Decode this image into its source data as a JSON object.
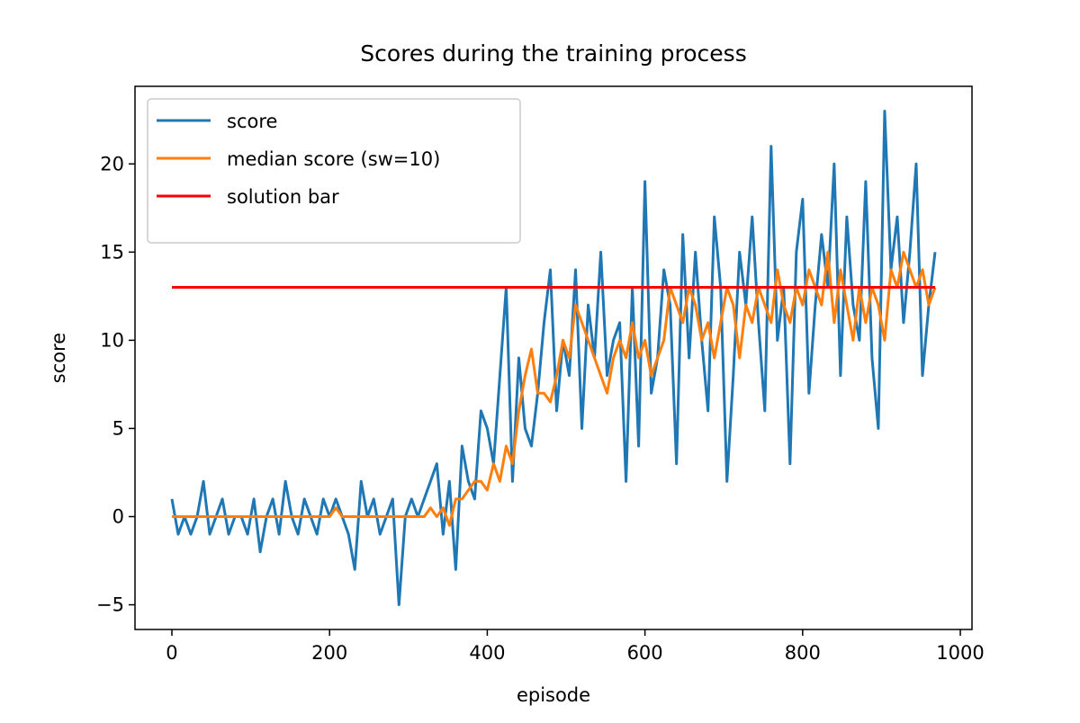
{
  "chart_data": {
    "type": "line",
    "title": "Scores during the training process",
    "x_label": "episode",
    "y_label": "score",
    "xlim": [
      -46.8,
      1014.8
    ],
    "ylim": [
      -6.4,
      24.4
    ],
    "xticks": [
      0,
      200,
      400,
      600,
      800,
      1000
    ],
    "yticks": [
      {
        "value": -5,
        "label": "−5"
      },
      0,
      5,
      10,
      15,
      20
    ],
    "legend": "upper left",
    "series": [
      {
        "name": "score",
        "color": "#1f77b4",
        "x": [
          0,
          8,
          16,
          24,
          32,
          40,
          48,
          56,
          64,
          72,
          80,
          88,
          96,
          104,
          112,
          120,
          128,
          136,
          144,
          152,
          160,
          168,
          176,
          184,
          192,
          200,
          208,
          216,
          224,
          232,
          240,
          248,
          256,
          264,
          272,
          280,
          288,
          296,
          304,
          312,
          320,
          328,
          336,
          344,
          352,
          360,
          368,
          376,
          384,
          392,
          400,
          408,
          416,
          424,
          432,
          440,
          448,
          456,
          464,
          472,
          480,
          488,
          496,
          504,
          512,
          520,
          528,
          536,
          544,
          552,
          560,
          568,
          576,
          584,
          592,
          600,
          608,
          616,
          624,
          632,
          640,
          648,
          656,
          664,
          672,
          680,
          688,
          696,
          704,
          712,
          720,
          728,
          736,
          744,
          752,
          760,
          768,
          776,
          784,
          792,
          800,
          808,
          816,
          824,
          832,
          840,
          848,
          856,
          864,
          872,
          880,
          888,
          896,
          904,
          912,
          920,
          928,
          936,
          944,
          952,
          960,
          968
        ],
        "values": [
          1,
          -1,
          0,
          -1,
          0,
          2,
          -1,
          0,
          1,
          -1,
          0,
          0,
          -1,
          1,
          -2,
          0,
          1,
          -1,
          2,
          0,
          -1,
          1,
          0,
          -1,
          1,
          0,
          1,
          0,
          -1,
          -3,
          2,
          0,
          1,
          -1,
          0,
          1,
          -5,
          0,
          1,
          0,
          1,
          2,
          3,
          -1,
          2,
          -3,
          4,
          2,
          1,
          6,
          5,
          3,
          8,
          13,
          2,
          9,
          5,
          4,
          7,
          11,
          14,
          6,
          10,
          8,
          14,
          5,
          12,
          9,
          15,
          8,
          10,
          11,
          2,
          13,
          4,
          19,
          7,
          9,
          14,
          12,
          3,
          16,
          9,
          15,
          10,
          6,
          17,
          13,
          2,
          8,
          15,
          12,
          17,
          11,
          6,
          21,
          10,
          13,
          3,
          15,
          18,
          7,
          12,
          16,
          13,
          20,
          8,
          17,
          12,
          10,
          19,
          9,
          5,
          23,
          14,
          17,
          11,
          15,
          20,
          8,
          12,
          15
        ]
      },
      {
        "name": "median score (sw=10)",
        "color": "#ff7f0e",
        "x": [
          0,
          8,
          16,
          24,
          32,
          40,
          48,
          56,
          64,
          72,
          80,
          88,
          96,
          104,
          112,
          120,
          128,
          136,
          144,
          152,
          160,
          168,
          176,
          184,
          192,
          200,
          208,
          216,
          224,
          232,
          240,
          248,
          256,
          264,
          272,
          280,
          288,
          296,
          304,
          312,
          320,
          328,
          336,
          344,
          352,
          360,
          368,
          376,
          384,
          392,
          400,
          408,
          416,
          424,
          432,
          440,
          448,
          456,
          464,
          472,
          480,
          488,
          496,
          504,
          512,
          520,
          528,
          536,
          544,
          552,
          560,
          568,
          576,
          584,
          592,
          600,
          608,
          616,
          624,
          632,
          640,
          648,
          656,
          664,
          672,
          680,
          688,
          696,
          704,
          712,
          720,
          728,
          736,
          744,
          752,
          760,
          768,
          776,
          784,
          792,
          800,
          808,
          816,
          824,
          832,
          840,
          848,
          856,
          864,
          872,
          880,
          888,
          896,
          904,
          912,
          920,
          928,
          936,
          944,
          952,
          960,
          968
        ],
        "values": [
          0,
          0,
          0,
          0,
          0,
          0,
          0,
          0,
          0,
          0,
          0,
          0,
          0,
          0,
          0,
          0,
          0,
          0,
          0,
          0,
          0,
          0,
          0,
          0,
          0,
          0,
          0.5,
          0,
          0,
          0,
          0,
          0,
          0,
          0,
          0,
          0,
          0,
          0,
          0,
          0,
          0,
          0.5,
          0,
          0.5,
          -0.5,
          1,
          1,
          1.5,
          2,
          2,
          1.5,
          3,
          2,
          4,
          3,
          6,
          8,
          9.5,
          7,
          7,
          6.5,
          8,
          10,
          9,
          12,
          11,
          10,
          9,
          8,
          7,
          9,
          10,
          9,
          11,
          9,
          10,
          8,
          9,
          10,
          13,
          12,
          11,
          13,
          12,
          10,
          11,
          9,
          11,
          13,
          12,
          9,
          12,
          11,
          13,
          12,
          11,
          14,
          12,
          11,
          13,
          12,
          14,
          13,
          12,
          15,
          11,
          14,
          12,
          10,
          13,
          11,
          13,
          12,
          10,
          14,
          13,
          15,
          14,
          13,
          14,
          12,
          13
        ]
      },
      {
        "name": "solution bar",
        "color": "#ff0000",
        "x": [
          0,
          968
        ],
        "values": [
          13,
          13
        ]
      }
    ]
  }
}
